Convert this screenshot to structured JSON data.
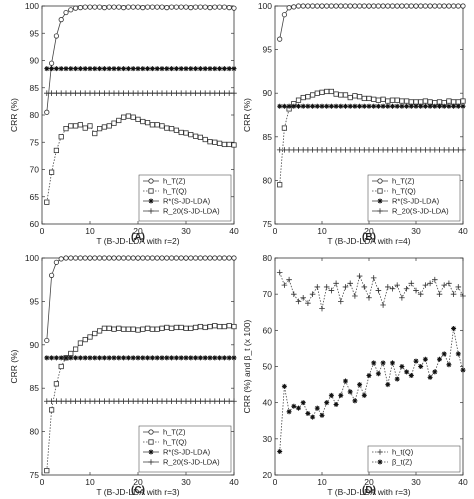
{
  "chart_data": [
    {
      "panel_label": "(A)",
      "type": "line",
      "xlabel": "T (B-JD-LDA with r=2)",
      "ylabel": "CRR (%)",
      "xlim": [
        0,
        40
      ],
      "ylim": [
        60,
        100
      ],
      "xticks": [
        0,
        10,
        20,
        30,
        40
      ],
      "yticks": [
        60,
        65,
        70,
        75,
        80,
        85,
        90,
        95,
        100
      ],
      "legend_position": "bottom-right",
      "series": [
        {
          "name": "h_T(Z)",
          "marker": "circle",
          "style": "solid",
          "x": [
            1,
            2,
            3,
            4,
            5,
            6,
            7,
            8,
            9,
            10,
            11,
            12,
            13,
            14,
            15,
            16,
            17,
            18,
            19,
            20,
            21,
            22,
            23,
            24,
            25,
            26,
            27,
            28,
            29,
            30,
            31,
            32,
            33,
            34,
            35,
            36,
            37,
            38,
            39,
            40
          ],
          "y": [
            80.5,
            89.5,
            94.5,
            97.5,
            98.8,
            99.3,
            99.6,
            99.7,
            99.8,
            99.8,
            99.8,
            99.8,
            99.7,
            99.8,
            99.8,
            99.8,
            99.7,
            99.8,
            99.8,
            99.8,
            99.7,
            99.8,
            99.8,
            99.8,
            99.8,
            99.7,
            99.8,
            99.8,
            99.8,
            99.8,
            99.7,
            99.8,
            99.8,
            99.8,
            99.7,
            99.8,
            99.8,
            99.8,
            99.7,
            99.6
          ]
        },
        {
          "name": "h_T(Q)",
          "marker": "square",
          "style": "dotted",
          "x": [
            1,
            2,
            3,
            4,
            5,
            6,
            7,
            8,
            9,
            10,
            11,
            12,
            13,
            14,
            15,
            16,
            17,
            18,
            19,
            20,
            21,
            22,
            23,
            24,
            25,
            26,
            27,
            28,
            29,
            30,
            31,
            32,
            33,
            34,
            35,
            36,
            37,
            38,
            39,
            40
          ],
          "y": [
            64,
            69.5,
            73.5,
            76,
            77.5,
            78,
            78,
            78.2,
            77.6,
            78,
            76.6,
            77.5,
            77.8,
            78,
            78.5,
            79,
            79.6,
            79.8,
            79.6,
            79.2,
            78.8,
            78.6,
            78.2,
            78.2,
            78,
            77.6,
            77.5,
            77.2,
            76.8,
            76.7,
            76.4,
            76.1,
            75.9,
            75.5,
            75.1,
            75,
            74.8,
            74.6,
            74.6,
            74.5
          ]
        },
        {
          "name": "R*(S-JD-LDA)",
          "marker": "star",
          "style": "solid",
          "constant": 88.5
        },
        {
          "name": "R_20(S-JD-LDA)",
          "marker": "plus",
          "style": "solid",
          "constant": 84
        }
      ]
    },
    {
      "panel_label": "(B)",
      "type": "line",
      "xlabel": "T (B-JD-LDA with r=4)",
      "ylabel": "CRR (%)",
      "xlim": [
        0,
        40
      ],
      "ylim": [
        75,
        100
      ],
      "xticks": [
        0,
        10,
        20,
        30,
        40
      ],
      "yticks": [
        75,
        80,
        85,
        90,
        95,
        100
      ],
      "legend_position": "bottom-right",
      "series": [
        {
          "name": "h_T(Z)",
          "marker": "circle",
          "style": "solid",
          "x": [
            1,
            2,
            3,
            4,
            5,
            6,
            7,
            8,
            9,
            10,
            11,
            12,
            13,
            14,
            15,
            16,
            17,
            18,
            19,
            20,
            21,
            22,
            23,
            24,
            25,
            26,
            27,
            28,
            29,
            30,
            31,
            32,
            33,
            34,
            35,
            36,
            37,
            38,
            39,
            40
          ],
          "y": [
            96.2,
            99,
            99.8,
            99.9,
            100,
            100,
            100,
            100,
            100,
            100,
            100,
            100,
            100,
            100,
            100,
            100,
            100,
            100,
            100,
            100,
            100,
            100,
            100,
            100,
            100,
            100,
            100,
            100,
            100,
            100,
            100,
            100,
            100,
            100,
            100,
            100,
            100,
            100,
            100,
            100
          ]
        },
        {
          "name": "h_T(Q)",
          "marker": "square",
          "style": "dotted",
          "x": [
            1,
            2,
            3,
            4,
            5,
            6,
            7,
            8,
            9,
            10,
            11,
            12,
            13,
            14,
            15,
            16,
            17,
            18,
            19,
            20,
            21,
            22,
            23,
            24,
            25,
            26,
            27,
            28,
            29,
            30,
            31,
            32,
            33,
            34,
            35,
            36,
            37,
            38,
            39,
            40
          ],
          "y": [
            79.5,
            86,
            88.2,
            88.8,
            89.2,
            89.5,
            89.6,
            89.8,
            90,
            90.1,
            90.2,
            90.2,
            89.9,
            89.8,
            89.8,
            89.5,
            89.7,
            89.6,
            89.4,
            89.4,
            89.3,
            89.2,
            89.3,
            89.1,
            89.2,
            89.2,
            89.1,
            89.1,
            89,
            89,
            89,
            89.1,
            89,
            88.9,
            89,
            88.9,
            89.1,
            89,
            89,
            89.1
          ]
        },
        {
          "name": "R*(S-JD-LDA)",
          "marker": "star",
          "style": "solid",
          "constant": 88.5
        },
        {
          "name": "R_20(S-JD-LDA)",
          "marker": "plus",
          "style": "solid",
          "constant": 83.5
        }
      ]
    },
    {
      "panel_label": "(C)",
      "type": "line",
      "xlabel": "T (B-JD-LDA with r=3)",
      "ylabel": "CRR (%)",
      "xlim": [
        0,
        40
      ],
      "ylim": [
        75,
        100
      ],
      "xticks": [
        0,
        10,
        20,
        30,
        40
      ],
      "yticks": [
        75,
        80,
        85,
        90,
        95,
        100
      ],
      "legend_position": "bottom-right",
      "series": [
        {
          "name": "h_T(Z)",
          "marker": "circle",
          "style": "solid",
          "x": [
            1,
            2,
            3,
            4,
            5,
            6,
            7,
            8,
            9,
            10,
            11,
            12,
            13,
            14,
            15,
            16,
            17,
            18,
            19,
            20,
            21,
            22,
            23,
            24,
            25,
            26,
            27,
            28,
            29,
            30,
            31,
            32,
            33,
            34,
            35,
            36,
            37,
            38,
            39,
            40
          ],
          "y": [
            90.5,
            98,
            99.5,
            99.9,
            100,
            100,
            100,
            100,
            100,
            100,
            100,
            100,
            100,
            100,
            100,
            100,
            100,
            100,
            100,
            100,
            100,
            100,
            100,
            100,
            100,
            100,
            100,
            100,
            100,
            100,
            100,
            100,
            100,
            100,
            100,
            100,
            100,
            100,
            100,
            100
          ]
        },
        {
          "name": "h_T(Q)",
          "marker": "square",
          "style": "dotted",
          "x": [
            1,
            2,
            3,
            4,
            5,
            6,
            7,
            8,
            9,
            10,
            11,
            12,
            13,
            14,
            15,
            16,
            17,
            18,
            19,
            20,
            21,
            22,
            23,
            24,
            25,
            26,
            27,
            28,
            29,
            30,
            31,
            32,
            33,
            34,
            35,
            36,
            37,
            38,
            39,
            40
          ],
          "y": [
            75.5,
            82.5,
            85.5,
            87.5,
            88.5,
            89,
            89.5,
            90.2,
            90.6,
            90.9,
            91.3,
            91.6,
            91.9,
            91.9,
            91.8,
            91.9,
            91.8,
            91.8,
            91.8,
            91.7,
            91.8,
            91.9,
            91.8,
            91.8,
            91.9,
            92,
            91.9,
            92,
            92,
            91.9,
            91.9,
            92,
            92.1,
            92,
            92.1,
            92.2,
            92.1,
            92.1,
            92.2,
            92.1
          ]
        },
        {
          "name": "R*(S-JD-LDA)",
          "marker": "star",
          "style": "solid",
          "constant": 88.5
        },
        {
          "name": "R_20(S-JD-LDA)",
          "marker": "plus",
          "style": "solid",
          "constant": 83.5
        }
      ]
    },
    {
      "panel_label": "(D)",
      "type": "line",
      "xlabel": "T (B-JD-LDA with r=3)",
      "ylabel": "CRR (%) and β_t (x 100)",
      "xlim": [
        0,
        40
      ],
      "ylim": [
        20,
        80
      ],
      "xticks": [
        0,
        10,
        20,
        30,
        40
      ],
      "yticks": [
        20,
        30,
        40,
        50,
        60,
        70,
        80
      ],
      "legend_position": "bottom-right",
      "series": [
        {
          "name": "h_t(Q)",
          "marker": "plus",
          "style": "dotted",
          "x": [
            1,
            2,
            3,
            4,
            5,
            6,
            7,
            8,
            9,
            10,
            11,
            12,
            13,
            14,
            15,
            16,
            17,
            18,
            19,
            20,
            21,
            22,
            23,
            24,
            25,
            26,
            27,
            28,
            29,
            30,
            31,
            32,
            33,
            34,
            35,
            36,
            37,
            38,
            39,
            40
          ],
          "y": [
            76,
            72.5,
            74,
            70,
            68,
            69,
            67.5,
            70,
            72,
            66,
            72,
            71,
            73,
            68,
            72,
            73,
            69.5,
            75,
            72,
            69,
            74.5,
            71,
            67,
            72,
            71.5,
            72.5,
            69,
            71.5,
            73,
            71,
            70,
            72.5,
            73,
            74,
            70,
            72.5,
            73,
            70,
            72,
            69.5
          ]
        },
        {
          "name": "β_t(Z)",
          "marker": "star",
          "style": "dotted",
          "x": [
            1,
            2,
            3,
            4,
            5,
            6,
            7,
            8,
            9,
            10,
            11,
            12,
            13,
            14,
            15,
            16,
            17,
            18,
            19,
            20,
            21,
            22,
            23,
            24,
            25,
            26,
            27,
            28,
            29,
            30,
            31,
            32,
            33,
            34,
            35,
            36,
            37,
            38,
            39,
            40
          ],
          "y": [
            26.5,
            44.5,
            37.5,
            39,
            38.5,
            40,
            37,
            36,
            38.5,
            36.5,
            40,
            42,
            39.5,
            42,
            46,
            43,
            40.5,
            45,
            42,
            47.5,
            51,
            48,
            51,
            45,
            51,
            46.5,
            50,
            48.5,
            47.5,
            51.5,
            50,
            52,
            47,
            48.5,
            52,
            53.5,
            50.5,
            60.5,
            53.5,
            49
          ]
        }
      ]
    }
  ]
}
